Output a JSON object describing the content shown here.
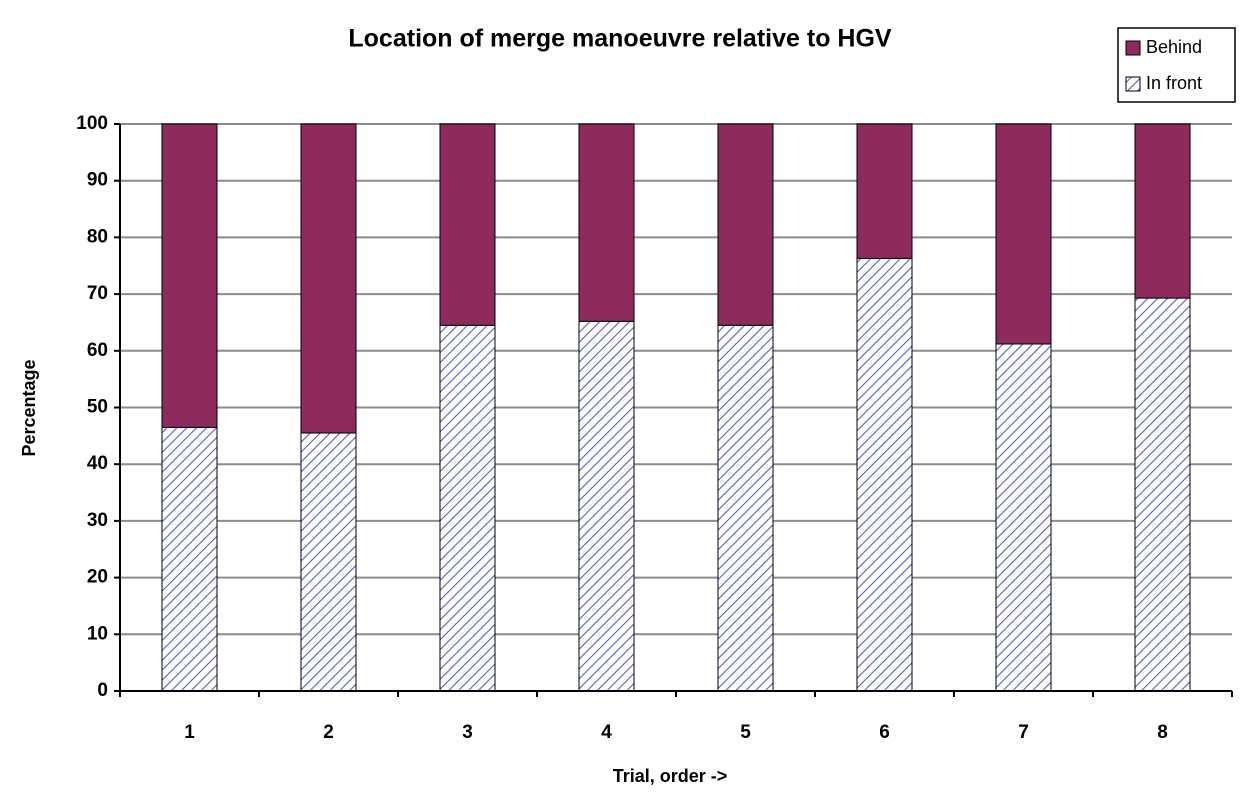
{
  "chart_data": {
    "type": "stacked_bar",
    "title": "Location of merge manoeuvre relative to HGV",
    "x_label": "Trial, order ->",
    "y_label": "Percentage",
    "categories": [
      "1",
      "2",
      "3",
      "4",
      "5",
      "6",
      "7",
      "8"
    ],
    "series": [
      {
        "name": "Behind",
        "color": "#8e2b5c",
        "values": [
          53.5,
          54.5,
          35.5,
          34.8,
          35.5,
          23.7,
          38.8,
          30.7
        ]
      },
      {
        "name": "In front",
        "color": "#5a5ad0",
        "hatch": true,
        "values": [
          46.5,
          45.5,
          64.5,
          65.2,
          64.5,
          76.3,
          61.2,
          69.3
        ]
      }
    ],
    "ylim": [
      0,
      100
    ],
    "yticks": [
      0,
      10,
      20,
      30,
      40,
      50,
      60,
      70,
      80,
      90,
      100
    ],
    "grid": true,
    "legend": "top-right"
  }
}
